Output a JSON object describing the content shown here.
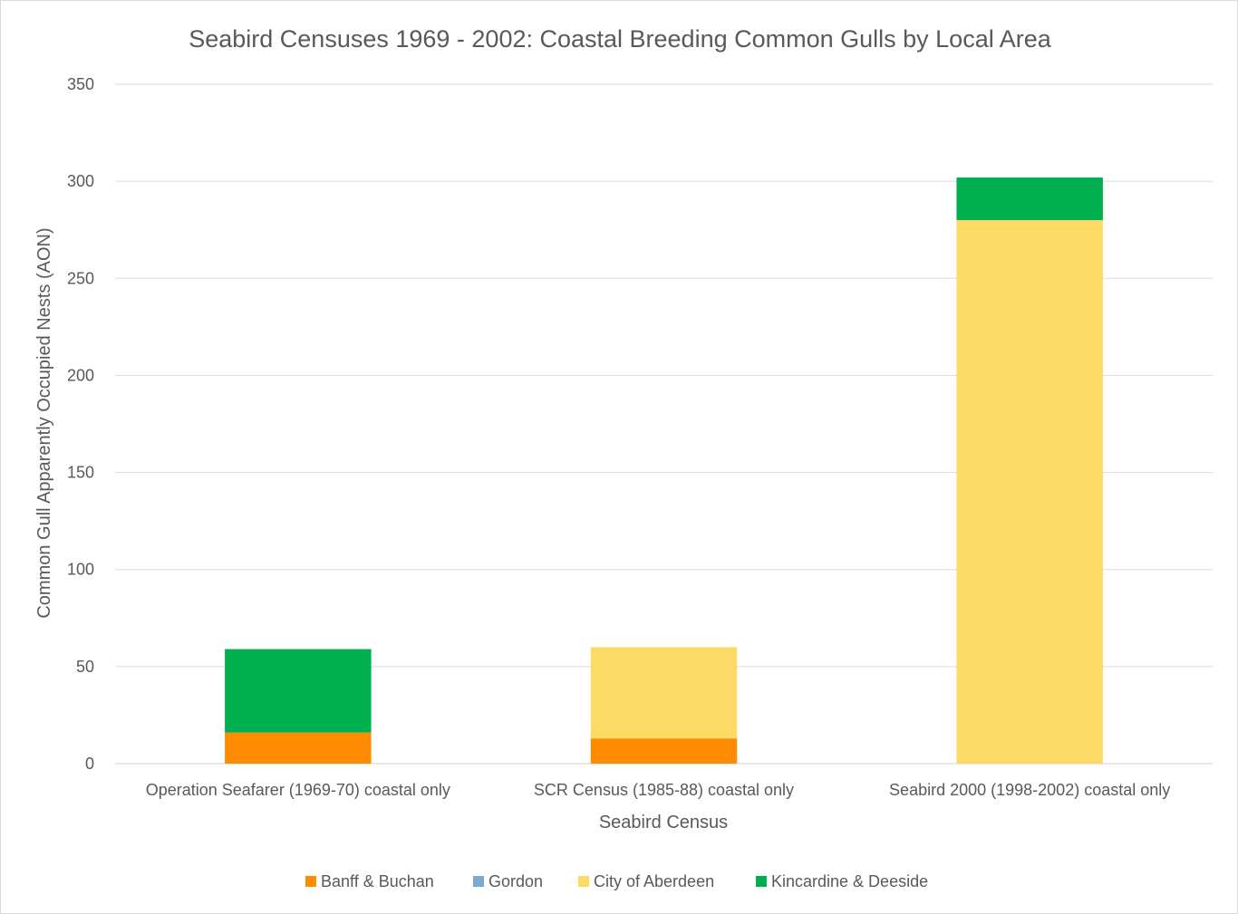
{
  "chart_data": {
    "type": "bar",
    "stacked": true,
    "title": "Seabird Censuses 1969 - 2002: Coastal Breeding Common Gulls by Local Area",
    "xlabel": "Seabird Census",
    "ylabel": "Common Gull Apparently Occupied Nests (AON)",
    "ylim": [
      0,
      350
    ],
    "yticks": [
      0,
      50,
      100,
      150,
      200,
      250,
      300,
      350
    ],
    "grid": true,
    "legend_position": "bottom",
    "categories": [
      "Operation Seafarer (1969-70) coastal only",
      "SCR Census (1985-88) coastal only",
      "Seabird 2000 (1998-2002) coastal only"
    ],
    "series": [
      {
        "name": "Banff & Buchan",
        "color": "#ff8c00",
        "values": [
          16,
          13,
          0
        ]
      },
      {
        "name": "Gordon",
        "color": "#7fa7cf",
        "values": [
          0,
          0,
          0
        ]
      },
      {
        "name": "City of Aberdeen",
        "color": "#fdd966",
        "values": [
          0,
          47,
          280
        ]
      },
      {
        "name": "Kincardine & Deeside",
        "color": "#00b050",
        "values": [
          43,
          0,
          22
        ]
      }
    ]
  }
}
